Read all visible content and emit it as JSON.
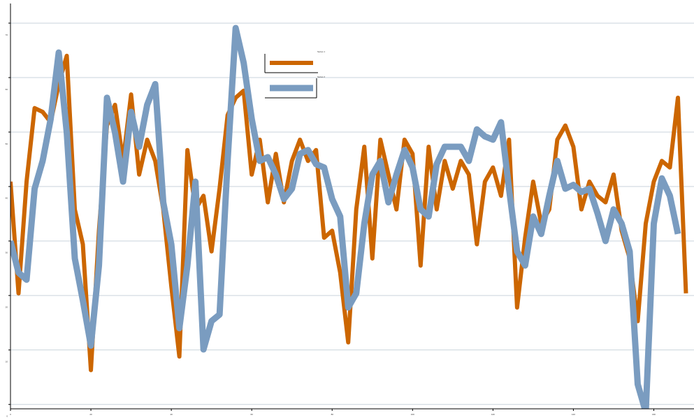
{
  "chart_data": {
    "type": "line",
    "xlim": [
      0,
      170
    ],
    "xticks": [
      0,
      20,
      40,
      60,
      80,
      100,
      120,
      140,
      160
    ],
    "ylim": [
      -0.8,
      73.6
    ],
    "yticks": [
      0,
      10,
      20,
      30,
      40,
      50,
      60,
      70
    ],
    "grid": true,
    "legend": "top-center",
    "series": [
      {
        "name": "Series 1",
        "color": "#cc6600",
        "x": [
          0,
          2,
          4,
          6,
          8,
          10,
          12,
          14,
          16,
          18,
          20,
          22,
          24,
          26,
          28,
          30,
          32,
          34,
          36,
          38,
          40,
          42,
          44,
          46,
          48,
          50,
          52,
          54,
          56,
          58,
          60,
          62,
          64,
          66,
          68,
          70,
          72,
          74,
          76,
          78,
          80,
          82,
          84,
          86,
          88,
          90,
          92,
          94,
          96,
          98,
          100,
          102,
          104,
          106,
          108,
          110,
          112,
          114,
          116,
          118,
          120,
          122,
          124,
          126,
          128,
          130,
          132,
          134,
          136,
          138,
          140,
          142,
          144,
          146,
          148,
          150,
          152,
          154,
          156,
          158,
          160,
          162,
          164,
          166,
          168
        ],
        "values": [
          40.9,
          20.4,
          40.9,
          54.4,
          53.7,
          51.8,
          58.8,
          64.0,
          35.8,
          29.4,
          6.3,
          31.9,
          51.2,
          55.0,
          44.7,
          56.9,
          42.2,
          48.6,
          44.7,
          35.8,
          21.7,
          8.8,
          46.7,
          35.8,
          38.3,
          28.1,
          39.6,
          53.1,
          56.3,
          57.6,
          42.2,
          48.6,
          37.1,
          46.0,
          37.1,
          44.7,
          48.6,
          44.7,
          46.7,
          30.6,
          31.9,
          24.2,
          11.4,
          35.8,
          47.3,
          26.8,
          48.6,
          42.2,
          35.8,
          48.6,
          46.0,
          25.5,
          47.3,
          35.8,
          44.7,
          39.6,
          44.7,
          42.2,
          29.4,
          40.9,
          43.5,
          38.3,
          48.6,
          17.8,
          30.6,
          40.9,
          33.2,
          35.8,
          48.6,
          51.2,
          47.3,
          35.8,
          40.9,
          38.3,
          37.1,
          42.2,
          31.9,
          26.8,
          15.3,
          33.2,
          40.9,
          44.7,
          43.5,
          56.3,
          20.4
        ]
      },
      {
        "name": "Series 2",
        "color": "#7a9cc0",
        "x": [
          0,
          2,
          4,
          6,
          8,
          10,
          12,
          14,
          16,
          18,
          20,
          22,
          24,
          26,
          28,
          30,
          32,
          34,
          36,
          38,
          40,
          42,
          44,
          46,
          48,
          50,
          52,
          54,
          56,
          58,
          60,
          62,
          64,
          66,
          68,
          70,
          72,
          74,
          76,
          78,
          80,
          82,
          84,
          86,
          88,
          90,
          92,
          94,
          96,
          98,
          100,
          102,
          104,
          106,
          108,
          110,
          112,
          114,
          116,
          118,
          120,
          122,
          124,
          126,
          128,
          130,
          132,
          134,
          136,
          138,
          140,
          142,
          144,
          146,
          148,
          150,
          152,
          154,
          156,
          158,
          160,
          162,
          164,
          166
        ],
        "values": [
          30.0,
          24.2,
          22.9,
          39.6,
          44.7,
          52.4,
          64.6,
          49.9,
          26.8,
          19.1,
          10.8,
          25.5,
          56.3,
          49.9,
          40.9,
          53.7,
          47.3,
          55.0,
          58.8,
          37.1,
          29.4,
          14.0,
          25.5,
          40.9,
          10.1,
          15.3,
          16.5,
          44.7,
          69.1,
          62.7,
          52.4,
          44.7,
          45.4,
          42.2,
          37.7,
          39.6,
          46.0,
          46.7,
          44.1,
          43.5,
          37.7,
          34.5,
          17.8,
          20.4,
          33.2,
          42.2,
          44.7,
          37.1,
          42.2,
          46.7,
          43.5,
          35.8,
          34.5,
          44.1,
          47.3,
          47.3,
          47.3,
          44.7,
          50.5,
          49.2,
          48.6,
          51.8,
          39.6,
          28.1,
          25.5,
          34.5,
          31.3,
          38.3,
          44.7,
          39.6,
          40.3,
          39.0,
          39.6,
          35.1,
          30.0,
          35.8,
          33.2,
          28.1,
          3.7,
          -1.4,
          33.2,
          41.5,
          38.3,
          31.3
        ]
      }
    ]
  }
}
